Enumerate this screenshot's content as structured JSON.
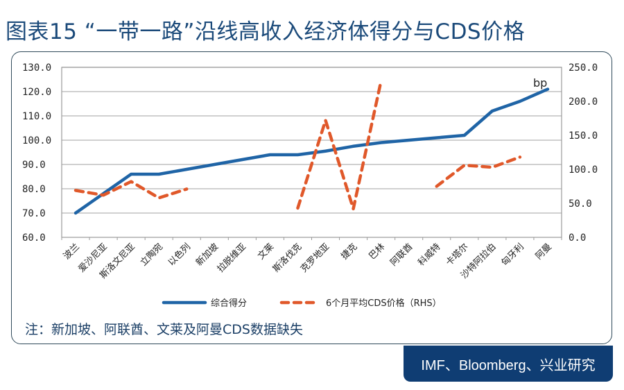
{
  "header": {
    "title": "图表15 “一带一路”沿线高收入经济体得分与CDS价格"
  },
  "note": "注：新加坡、阿联酋、文莱及阿曼CDS数据缺失",
  "source": "IMF、Bloomberg、兴业研究",
  "colors": {
    "score_line": "#1f64a6",
    "cds_line": "#e0582a",
    "title": "#1b4a7a",
    "source_bg": "#0f3d73"
  },
  "chart_data": {
    "type": "line",
    "title": "“一带一路”沿线高收入经济体得分与CDS价格",
    "xlabel": "",
    "ylabel": "",
    "y2label": "bp",
    "ylim": [
      60,
      130
    ],
    "y2lim": [
      0,
      250
    ],
    "y_ticks": [
      "130.0",
      "120.0",
      "110.0",
      "100.0",
      "90.0",
      "80.0",
      "70.0",
      "60.0"
    ],
    "y2_ticks": [
      "250.0",
      "200.0",
      "150.0",
      "100.0",
      "50.0",
      "0.0"
    ],
    "grid": true,
    "legend_position": "bottom",
    "categories": [
      "波兰",
      "爱沙尼亚",
      "斯洛文尼亚",
      "立陶宛",
      "以色列",
      "新加坡",
      "拉脱维亚",
      "文莱",
      "斯洛伐克",
      "克罗地亚",
      "捷克",
      "巴林",
      "阿联酋",
      "科威特",
      "卡塔尔",
      "沙特阿拉伯",
      "匈牙利",
      "阿曼"
    ],
    "series": [
      {
        "name": "综合得分",
        "axis": "left",
        "style": "solid",
        "values": [
          70,
          78,
          86,
          86,
          88,
          90,
          92,
          94,
          94,
          95.5,
          97.5,
          99,
          100,
          101,
          102,
          112,
          116,
          121
        ]
      },
      {
        "name": "6个月平均CDS价格（RHS）",
        "axis": "right",
        "style": "dashed",
        "values": [
          69,
          62,
          82,
          58,
          71,
          null,
          null,
          null,
          43,
          172,
          42,
          230,
          null,
          75,
          106,
          103,
          118,
          null
        ]
      }
    ]
  }
}
